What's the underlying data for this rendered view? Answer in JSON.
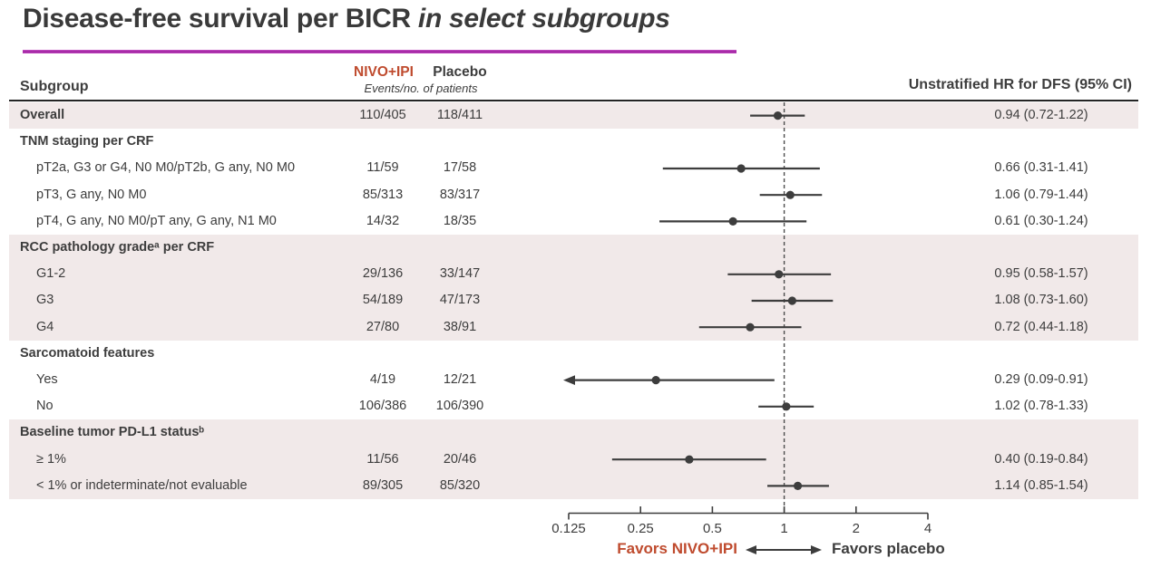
{
  "title": {
    "text_regular": "Disease-free survival per BICR ",
    "text_italic": "in select subgroups"
  },
  "header": {
    "subgroup_col": "Subgroup",
    "nivo_col": "NIVO+IPI",
    "placebo_col": "Placebo",
    "events_caption": "Events/no. of patients",
    "hr_col": "Unstratified HR for DFS (95% CI)"
  },
  "colors": {
    "accent_red": "#bf4b2e",
    "title_rule_magenta": "#aa28aa",
    "row_shade": "#f1e9e9",
    "ink": "#3d3d3d"
  },
  "chart_data": {
    "type": "forest",
    "x_scale": "log2",
    "x_range": [
      0.125,
      4
    ],
    "x_ticks": [
      0.125,
      0.25,
      0.5,
      1,
      2,
      4
    ],
    "x_tick_labels": [
      "0.125",
      "0.25",
      "0.5",
      "1",
      "2",
      "4"
    ],
    "reference_line": 1,
    "favors_left": "Favors NIVO+IPI",
    "favors_right": "Favors placebo",
    "rows": [
      {
        "type": "data",
        "indent": 0,
        "bold": true,
        "shaded": true,
        "label": "Overall",
        "nivo": "110/405",
        "placebo": "118/411",
        "hr": 0.94,
        "ci_low": 0.72,
        "ci_high": 1.22,
        "hr_text": "0.94 (0.72-1.22)"
      },
      {
        "type": "section",
        "shaded": false,
        "label": "TNM staging per CRF"
      },
      {
        "type": "data",
        "indent": 1,
        "shaded": false,
        "label": "pT2a, G3 or G4, N0 M0/pT2b, G any, N0 M0",
        "nivo": "11/59",
        "placebo": "17/58",
        "hr": 0.66,
        "ci_low": 0.31,
        "ci_high": 1.41,
        "hr_text": "0.66 (0.31-1.41)"
      },
      {
        "type": "data",
        "indent": 1,
        "shaded": false,
        "label": "pT3, G any, N0 M0",
        "nivo": "85/313",
        "placebo": "83/317",
        "hr": 1.06,
        "ci_low": 0.79,
        "ci_high": 1.44,
        "hr_text": "1.06 (0.79-1.44)"
      },
      {
        "type": "data",
        "indent": 1,
        "shaded": false,
        "label": "pT4, G any, N0 M0/pT any, G any, N1 M0",
        "nivo": "14/32",
        "placebo": "18/35",
        "hr": 0.61,
        "ci_low": 0.3,
        "ci_high": 1.24,
        "hr_text": "0.61 (0.30-1.24)"
      },
      {
        "type": "section",
        "shaded": true,
        "label": "RCC pathology gradeᵃ per CRF"
      },
      {
        "type": "data",
        "indent": 1,
        "shaded": true,
        "label": "G1-2",
        "nivo": "29/136",
        "placebo": "33/147",
        "hr": 0.95,
        "ci_low": 0.58,
        "ci_high": 1.57,
        "hr_text": "0.95 (0.58-1.57)"
      },
      {
        "type": "data",
        "indent": 1,
        "shaded": true,
        "label": "G3",
        "nivo": "54/189",
        "placebo": "47/173",
        "hr": 1.08,
        "ci_low": 0.73,
        "ci_high": 1.6,
        "hr_text": "1.08 (0.73-1.60)"
      },
      {
        "type": "data",
        "indent": 1,
        "shaded": true,
        "label": "G4",
        "nivo": "27/80",
        "placebo": "38/91",
        "hr": 0.72,
        "ci_low": 0.44,
        "ci_high": 1.18,
        "hr_text": "0.72 (0.44-1.18)"
      },
      {
        "type": "section",
        "shaded": false,
        "label": "Sarcomatoid features"
      },
      {
        "type": "data",
        "indent": 1,
        "shaded": false,
        "label": "Yes",
        "nivo": "4/19",
        "placebo": "12/21",
        "hr": 0.29,
        "ci_low": 0.09,
        "ci_high": 0.91,
        "hr_text": "0.29 (0.09-0.91)",
        "arrow_left": true
      },
      {
        "type": "data",
        "indent": 1,
        "shaded": false,
        "label": "No",
        "nivo": "106/386",
        "placebo": "106/390",
        "hr": 1.02,
        "ci_low": 0.78,
        "ci_high": 1.33,
        "hr_text": "1.02 (0.78-1.33)"
      },
      {
        "type": "section",
        "shaded": true,
        "label": "Baseline tumor PD-L1 statusᵇ"
      },
      {
        "type": "data",
        "indent": 1,
        "shaded": true,
        "label": "≥ 1%",
        "nivo": "11/56",
        "placebo": "20/46",
        "hr": 0.4,
        "ci_low": 0.19,
        "ci_high": 0.84,
        "hr_text": "0.40 (0.19-0.84)"
      },
      {
        "type": "data",
        "indent": 1,
        "shaded": true,
        "label": "< 1% or indeterminate/not evaluable",
        "nivo": "89/305",
        "placebo": "85/320",
        "hr": 1.14,
        "ci_low": 0.85,
        "ci_high": 1.54,
        "hr_text": "1.14 (0.85-1.54)"
      }
    ]
  }
}
